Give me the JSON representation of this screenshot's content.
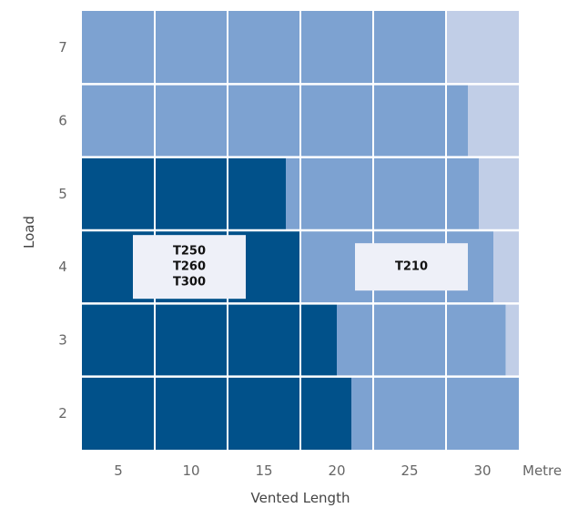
{
  "chart_data": {
    "type": "heatmap",
    "xlabel": "Vented Length",
    "xunit": "Metre",
    "ylabel": "Load",
    "xlim": [
      2.5,
      32.5
    ],
    "x_ticks": [
      5,
      10,
      15,
      20,
      25,
      30
    ],
    "y_ticks": [
      7,
      6,
      5,
      4,
      3,
      2
    ],
    "colors": {
      "dark": "#01518a",
      "medium": "#7da2d1",
      "light": "#c1cee7",
      "label_bg": "#eef0f8"
    },
    "rows": [
      {
        "load": 7,
        "dark_until": 2.5,
        "medium_until": 27.5
      },
      {
        "load": 6,
        "dark_until": 2.5,
        "medium_until": 29.0
      },
      {
        "load": 5,
        "dark_until": 16.5,
        "medium_until": 29.75
      },
      {
        "load": 4,
        "dark_until": 17.5,
        "medium_until": 30.75
      },
      {
        "load": 3,
        "dark_until": 20.0,
        "medium_until": 31.6
      },
      {
        "load": 2,
        "dark_until": 21.0,
        "medium_until": 32.5
      }
    ],
    "annotations": [
      {
        "load": 4,
        "x_from": 6.0,
        "x_to": 13.75,
        "lines": [
          "T250",
          "T260",
          "T300"
        ]
      },
      {
        "load": 4,
        "x_from": 21.25,
        "x_to": 29.0,
        "lines": [
          "T210"
        ]
      }
    ]
  }
}
